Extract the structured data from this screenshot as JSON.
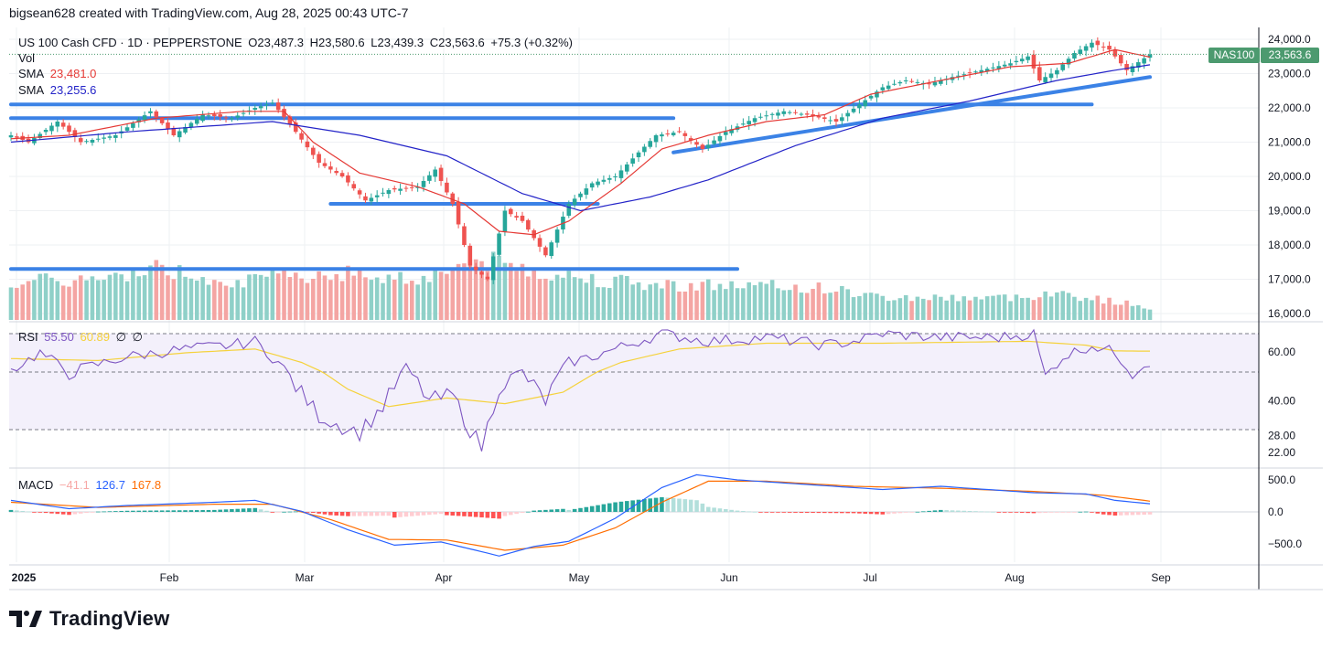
{
  "header": {
    "credit": "bigsean628 created with TradingView.com, Aug 28, 2025 00:43 UTC-7"
  },
  "legend": {
    "symbol": "US 100 Cash CFD · 1D · PEPPERSTONE",
    "open": "O23,487.3",
    "high": "H23,580.6",
    "low": "L23,439.3",
    "close": "C23,563.6",
    "change": "+75.3 (+0.32%)",
    "vol_label": "Vol",
    "sma1_label": "SMA",
    "sma1_value": "23,481.0",
    "sma2_label": "SMA",
    "sma2_value": "23,255.6",
    "rsi_label": "RSI",
    "rsi_value": "55.50",
    "rsi_ma_value": "60.89",
    "rsi_extra1": "∅",
    "rsi_extra2": "∅",
    "macd_label": "MACD",
    "macd_hist": "−41.1",
    "macd_line": "126.7",
    "macd_signal": "167.8"
  },
  "tags": {
    "symbol": "NAS100",
    "price": "23,563.6"
  },
  "brand": {
    "name": "TradingView"
  },
  "colors": {
    "up": "#26a69a",
    "down": "#ef5350",
    "sma_fast": "#e53935",
    "sma_slow": "#2424c8",
    "trendline": "#3b82e6",
    "rsi": "#7e57c2",
    "rsi_ma": "#f5d23c",
    "macd": "#2962ff",
    "signal": "#ff6d00",
    "tag": "#4c9a6f"
  },
  "chart_data": {
    "type": "candlestick",
    "title": "US 100 Cash CFD · 1D · PEPPERSTONE",
    "x_ticks": [
      "2025",
      "Feb",
      "Mar",
      "Apr",
      "May",
      "Jun",
      "Jul",
      "Aug",
      "Sep"
    ],
    "price_axis": {
      "ticks": [
        "24,000.0",
        "23,000.0",
        "22,000.0",
        "21,000.0",
        "20,000.0",
        "19,000.0",
        "18,000.0",
        "17,000.0",
        "16,000.0"
      ],
      "range": [
        15960,
        24080
      ]
    },
    "rsi_axis": {
      "ticks": [
        "60.00",
        "40.00",
        "28.00",
        "22.00"
      ],
      "bands": [
        30,
        50,
        70
      ]
    },
    "macd_axis": {
      "ticks": [
        "500.0",
        "0.0",
        "−500.0"
      ]
    },
    "close_anchors": [
      {
        "i": 0,
        "v": 21200
      },
      {
        "i": 3,
        "v": 21000
      },
      {
        "i": 8,
        "v": 21600
      },
      {
        "i": 12,
        "v": 21000
      },
      {
        "i": 18,
        "v": 21200
      },
      {
        "i": 24,
        "v": 21900
      },
      {
        "i": 28,
        "v": 21200
      },
      {
        "i": 33,
        "v": 21800
      },
      {
        "i": 38,
        "v": 21700
      },
      {
        "i": 42,
        "v": 22000
      },
      {
        "i": 45,
        "v": 22150
      },
      {
        "i": 49,
        "v": 21300
      },
      {
        "i": 53,
        "v": 20400
      },
      {
        "i": 57,
        "v": 20000
      },
      {
        "i": 61,
        "v": 19300
      },
      {
        "i": 65,
        "v": 19600
      },
      {
        "i": 70,
        "v": 19700
      },
      {
        "i": 73,
        "v": 20200
      },
      {
        "i": 76,
        "v": 19200
      },
      {
        "i": 79,
        "v": 17400
      },
      {
        "i": 82,
        "v": 17000
      },
      {
        "i": 85,
        "v": 19000
      },
      {
        "i": 88,
        "v": 18700
      },
      {
        "i": 92,
        "v": 17700
      },
      {
        "i": 96,
        "v": 19200
      },
      {
        "i": 100,
        "v": 19800
      },
      {
        "i": 104,
        "v": 20000
      },
      {
        "i": 108,
        "v": 20700
      },
      {
        "i": 111,
        "v": 21200
      },
      {
        "i": 115,
        "v": 21300
      },
      {
        "i": 119,
        "v": 20800
      },
      {
        "i": 123,
        "v": 21300
      },
      {
        "i": 128,
        "v": 21700
      },
      {
        "i": 133,
        "v": 21900
      },
      {
        "i": 137,
        "v": 21800
      },
      {
        "i": 142,
        "v": 21600
      },
      {
        "i": 146,
        "v": 22100
      },
      {
        "i": 150,
        "v": 22600
      },
      {
        "i": 154,
        "v": 22800
      },
      {
        "i": 158,
        "v": 22700
      },
      {
        "i": 162,
        "v": 22900
      },
      {
        "i": 167,
        "v": 23100
      },
      {
        "i": 172,
        "v": 23300
      },
      {
        "i": 175,
        "v": 23500
      },
      {
        "i": 177,
        "v": 22800
      },
      {
        "i": 180,
        "v": 23100
      },
      {
        "i": 183,
        "v": 23600
      },
      {
        "i": 186,
        "v": 23900
      },
      {
        "i": 189,
        "v": 23700
      },
      {
        "i": 192,
        "v": 23100
      },
      {
        "i": 196,
        "v": 23563.6
      }
    ],
    "sma_fast_anchors": [
      {
        "i": 0,
        "v": 21100
      },
      {
        "i": 10,
        "v": 21200
      },
      {
        "i": 25,
        "v": 21700
      },
      {
        "i": 40,
        "v": 21900
      },
      {
        "i": 47,
        "v": 21900
      },
      {
        "i": 52,
        "v": 21000
      },
      {
        "i": 60,
        "v": 20100
      },
      {
        "i": 70,
        "v": 19700
      },
      {
        "i": 78,
        "v": 19200
      },
      {
        "i": 84,
        "v": 18400
      },
      {
        "i": 90,
        "v": 18300
      },
      {
        "i": 96,
        "v": 18700
      },
      {
        "i": 105,
        "v": 19800
      },
      {
        "i": 112,
        "v": 20800
      },
      {
        "i": 120,
        "v": 21200
      },
      {
        "i": 130,
        "v": 21600
      },
      {
        "i": 140,
        "v": 21800
      },
      {
        "i": 148,
        "v": 22400
      },
      {
        "i": 160,
        "v": 22800
      },
      {
        "i": 172,
        "v": 23200
      },
      {
        "i": 182,
        "v": 23300
      },
      {
        "i": 190,
        "v": 23700
      },
      {
        "i": 196,
        "v": 23481
      }
    ],
    "sma_slow_anchors": [
      {
        "i": 0,
        "v": 21000
      },
      {
        "i": 20,
        "v": 21300
      },
      {
        "i": 45,
        "v": 21600
      },
      {
        "i": 60,
        "v": 21200
      },
      {
        "i": 75,
        "v": 20600
      },
      {
        "i": 88,
        "v": 19500
      },
      {
        "i": 98,
        "v": 19000
      },
      {
        "i": 110,
        "v": 19400
      },
      {
        "i": 120,
        "v": 19900
      },
      {
        "i": 135,
        "v": 20900
      },
      {
        "i": 150,
        "v": 21700
      },
      {
        "i": 165,
        "v": 22200
      },
      {
        "i": 180,
        "v": 22800
      },
      {
        "i": 190,
        "v": 23100
      },
      {
        "i": 196,
        "v": 23255.6
      }
    ],
    "rsi_anchors": [
      {
        "i": 0,
        "v": 51
      },
      {
        "i": 5,
        "v": 60
      },
      {
        "i": 10,
        "v": 50
      },
      {
        "i": 20,
        "v": 58
      },
      {
        "i": 30,
        "v": 62
      },
      {
        "i": 38,
        "v": 64
      },
      {
        "i": 42,
        "v": 66
      },
      {
        "i": 46,
        "v": 55
      },
      {
        "i": 49,
        "v": 45
      },
      {
        "i": 53,
        "v": 35
      },
      {
        "i": 56,
        "v": 32
      },
      {
        "i": 60,
        "v": 29
      },
      {
        "i": 64,
        "v": 38
      },
      {
        "i": 68,
        "v": 52
      },
      {
        "i": 72,
        "v": 40
      },
      {
        "i": 76,
        "v": 42
      },
      {
        "i": 79,
        "v": 30
      },
      {
        "i": 81,
        "v": 24
      },
      {
        "i": 84,
        "v": 45
      },
      {
        "i": 88,
        "v": 50
      },
      {
        "i": 92,
        "v": 40
      },
      {
        "i": 96,
        "v": 55
      },
      {
        "i": 100,
        "v": 58
      },
      {
        "i": 106,
        "v": 64
      },
      {
        "i": 112,
        "v": 70
      },
      {
        "i": 120,
        "v": 66
      },
      {
        "i": 130,
        "v": 68
      },
      {
        "i": 140,
        "v": 64
      },
      {
        "i": 145,
        "v": 66
      },
      {
        "i": 150,
        "v": 70
      },
      {
        "i": 160,
        "v": 68
      },
      {
        "i": 170,
        "v": 68
      },
      {
        "i": 176,
        "v": 70
      },
      {
        "i": 178,
        "v": 48
      },
      {
        "i": 181,
        "v": 58
      },
      {
        "i": 186,
        "v": 64
      },
      {
        "i": 190,
        "v": 60
      },
      {
        "i": 193,
        "v": 50
      },
      {
        "i": 196,
        "v": 55.5
      }
    ],
    "rsi_ma_anchors": [
      {
        "i": 0,
        "v": 57
      },
      {
        "i": 15,
        "v": 56
      },
      {
        "i": 30,
        "v": 60
      },
      {
        "i": 42,
        "v": 62
      },
      {
        "i": 50,
        "v": 55
      },
      {
        "i": 58,
        "v": 44
      },
      {
        "i": 65,
        "v": 38
      },
      {
        "i": 75,
        "v": 41
      },
      {
        "i": 85,
        "v": 39
      },
      {
        "i": 95,
        "v": 43
      },
      {
        "i": 105,
        "v": 55
      },
      {
        "i": 115,
        "v": 62
      },
      {
        "i": 130,
        "v": 65
      },
      {
        "i": 150,
        "v": 65
      },
      {
        "i": 175,
        "v": 66
      },
      {
        "i": 185,
        "v": 64
      },
      {
        "i": 190,
        "v": 61
      },
      {
        "i": 196,
        "v": 60.89
      }
    ],
    "macd_anchors": [
      {
        "i": 0,
        "v": 180
      },
      {
        "i": 10,
        "v": 50
      },
      {
        "i": 20,
        "v": 100
      },
      {
        "i": 35,
        "v": 150
      },
      {
        "i": 42,
        "v": 180
      },
      {
        "i": 50,
        "v": 10
      },
      {
        "i": 58,
        "v": -280
      },
      {
        "i": 66,
        "v": -520
      },
      {
        "i": 74,
        "v": -470
      },
      {
        "i": 80,
        "v": -600
      },
      {
        "i": 84,
        "v": -690
      },
      {
        "i": 90,
        "v": -540
      },
      {
        "i": 96,
        "v": -460
      },
      {
        "i": 104,
        "v": -100
      },
      {
        "i": 112,
        "v": 380
      },
      {
        "i": 118,
        "v": 580
      },
      {
        "i": 125,
        "v": 500
      },
      {
        "i": 140,
        "v": 410
      },
      {
        "i": 150,
        "v": 350
      },
      {
        "i": 160,
        "v": 400
      },
      {
        "i": 176,
        "v": 300
      },
      {
        "i": 185,
        "v": 280
      },
      {
        "i": 190,
        "v": 180
      },
      {
        "i": 196,
        "v": 126.7
      }
    ],
    "signal_anchors": [
      {
        "i": 0,
        "v": 150
      },
      {
        "i": 15,
        "v": 70
      },
      {
        "i": 35,
        "v": 120
      },
      {
        "i": 45,
        "v": 120
      },
      {
        "i": 55,
        "v": -120
      },
      {
        "i": 65,
        "v": -430
      },
      {
        "i": 75,
        "v": -440
      },
      {
        "i": 85,
        "v": -600
      },
      {
        "i": 95,
        "v": -520
      },
      {
        "i": 104,
        "v": -250
      },
      {
        "i": 112,
        "v": 150
      },
      {
        "i": 120,
        "v": 480
      },
      {
        "i": 130,
        "v": 480
      },
      {
        "i": 145,
        "v": 400
      },
      {
        "i": 160,
        "v": 370
      },
      {
        "i": 176,
        "v": 320
      },
      {
        "i": 188,
        "v": 260
      },
      {
        "i": 196,
        "v": 167.8
      }
    ],
    "volume_anchors": [
      {
        "i": 0,
        "v": 0.6
      },
      {
        "i": 20,
        "v": 0.65
      },
      {
        "i": 22,
        "v": 0.85
      },
      {
        "i": 40,
        "v": 0.6
      },
      {
        "i": 55,
        "v": 0.75
      },
      {
        "i": 70,
        "v": 0.65
      },
      {
        "i": 80,
        "v": 0.95
      },
      {
        "i": 95,
        "v": 0.7
      },
      {
        "i": 110,
        "v": 0.55
      },
      {
        "i": 120,
        "v": 0.55
      },
      {
        "i": 140,
        "v": 0.5
      },
      {
        "i": 150,
        "v": 0.35
      },
      {
        "i": 175,
        "v": 0.35
      },
      {
        "i": 178,
        "v": 0.45
      },
      {
        "i": 196,
        "v": 0.2
      }
    ],
    "horizontal_levels": [
      22100,
      21700,
      19200,
      17300
    ],
    "trendlines": [
      {
        "x1_i": 114,
        "y1": 20700,
        "x2_i": 196,
        "y2": 22900
      },
      {
        "x1_i": 0,
        "y1": 22100,
        "x2_i": 186,
        "y2": 22100
      }
    ]
  }
}
